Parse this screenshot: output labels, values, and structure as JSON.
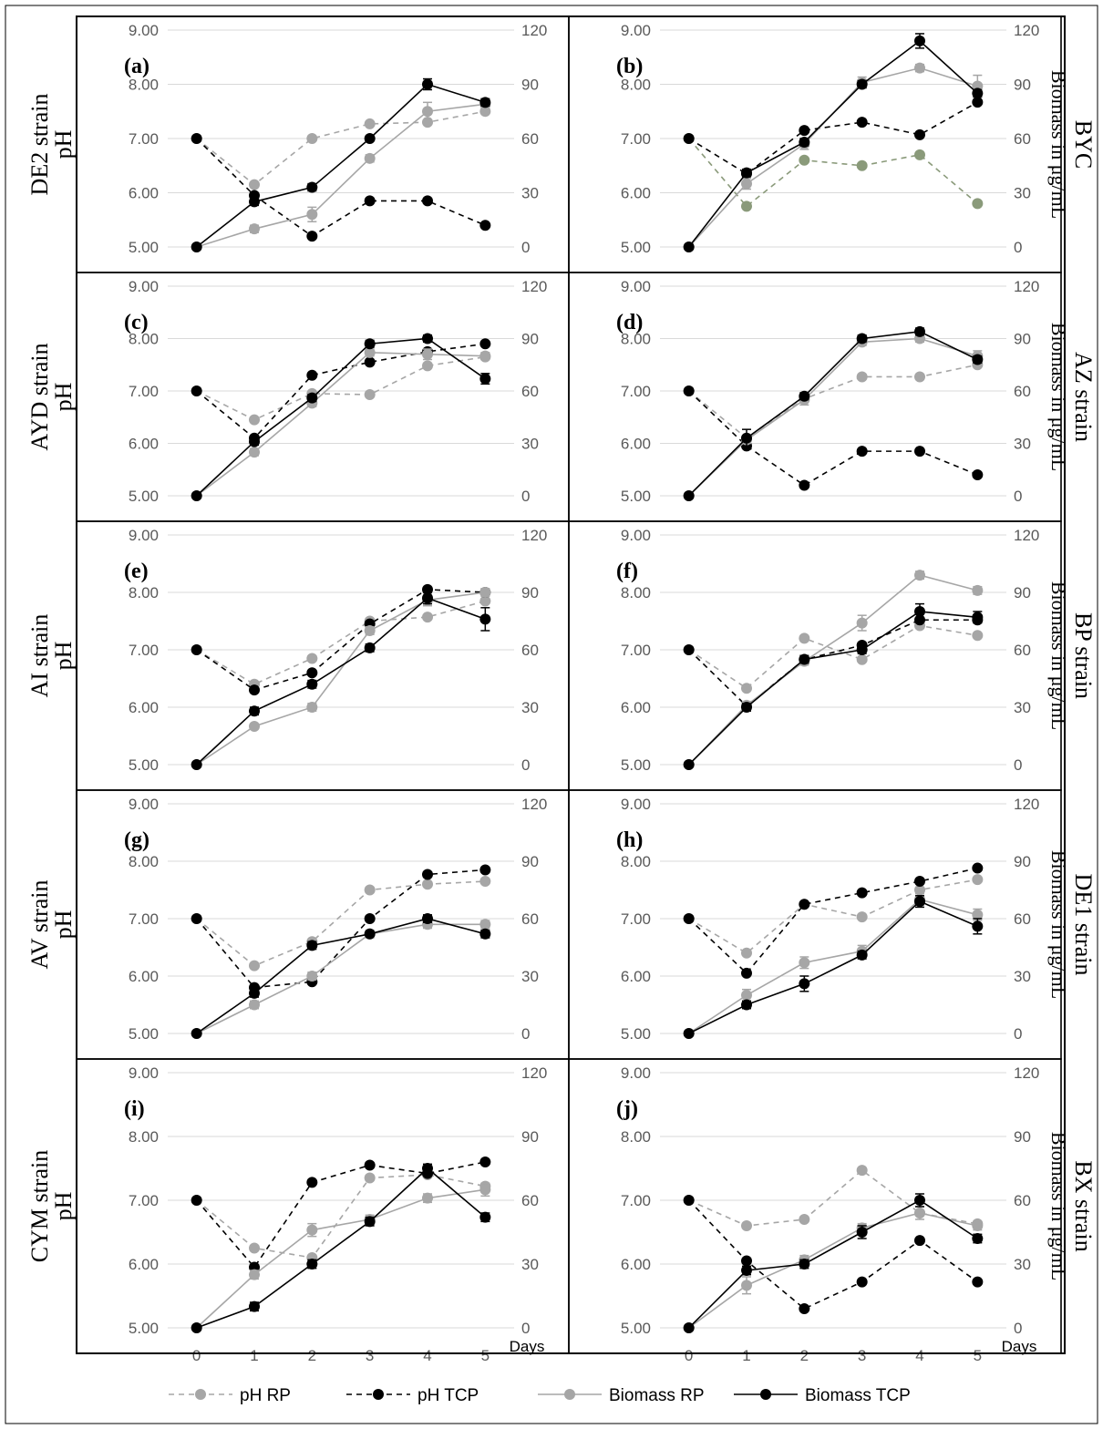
{
  "chart_data": {
    "type": "line",
    "layout": "5 rows x 2 columns of panels",
    "x": [
      0,
      1,
      2,
      3,
      4,
      5
    ],
    "xlabel": "Days",
    "x_tick_labels": [
      "0",
      "1",
      "2",
      "3",
      "4",
      "5"
    ],
    "y_left": {
      "ticks": [
        "5.00",
        "6.00",
        "7.00",
        "8.00",
        "9.00"
      ],
      "range": [
        5,
        9
      ]
    },
    "y_right": {
      "ticks": [
        "0",
        "30",
        "60",
        "90",
        "120"
      ],
      "range": [
        0,
        120
      ]
    },
    "left_axis_label": "pH",
    "right_axis_label": "Biomass in μg/mL",
    "grid": "horizontal",
    "legend": {
      "placement": "bottom",
      "items": [
        {
          "name": "pH RP",
          "color": "#a6a6a6",
          "style": "dashed"
        },
        {
          "name": "pH TCP",
          "color": "#000000",
          "style": "dashed"
        },
        {
          "name": "Biomass RP",
          "color": "#a6a6a6",
          "style": "solid"
        },
        {
          "name": "Biomass TCP",
          "color": "#000000",
          "style": "solid"
        }
      ]
    },
    "panels": [
      {
        "label": "(a)",
        "strain": "DE2 strain",
        "ph_rp": [
          7.0,
          6.15,
          7.0,
          7.27,
          7.3,
          7.5
        ],
        "ph_tcp": [
          7.0,
          5.95,
          5.2,
          5.85,
          5.85,
          5.4
        ],
        "bio_rp": [
          0,
          10,
          18,
          49,
          75,
          79
        ],
        "bio_rp_err": [
          0,
          2,
          4,
          2,
          5,
          2
        ],
        "bio_tcp": [
          0,
          25,
          33,
          60,
          90,
          80
        ],
        "bio_tcp_err": [
          0,
          2,
          2,
          1,
          3,
          2
        ]
      },
      {
        "label": "(b)",
        "strain": "BYC",
        "ph_rp": [
          7.0,
          5.75,
          6.6,
          6.5,
          6.7,
          5.8
        ],
        "ph_rp_color": "#8a9a7a",
        "ph_tcp": [
          7.0,
          6.35,
          7.15,
          7.3,
          7.07,
          7.67
        ],
        "bio_rp": [
          0,
          35,
          57,
          91,
          99,
          89
        ],
        "bio_rp_err": [
          0,
          3,
          3,
          3,
          2,
          6
        ],
        "bio_tcp": [
          0,
          41,
          58,
          90,
          114,
          85
        ],
        "bio_tcp_err": [
          0,
          2,
          2,
          2,
          4,
          2
        ]
      },
      {
        "label": "(c)",
        "strain": "AYD strain",
        "ph_rp": [
          7.0,
          6.45,
          6.95,
          6.93,
          7.48,
          7.65
        ],
        "ph_tcp": [
          7.0,
          6.1,
          7.3,
          7.55,
          7.75,
          7.9
        ],
        "bio_rp": [
          0,
          25,
          53,
          82,
          81,
          80
        ],
        "bio_rp_err": [
          0,
          2,
          2,
          2,
          3,
          2
        ],
        "bio_tcp": [
          0,
          31,
          56,
          87,
          90,
          67
        ],
        "bio_tcp_err": [
          0,
          2,
          2,
          2,
          2,
          3
        ]
      },
      {
        "label": "(d)",
        "strain": "AZ strain",
        "ph_rp": [
          7.0,
          6.1,
          6.85,
          7.27,
          7.27,
          7.5
        ],
        "ph_tcp": [
          7.0,
          5.95,
          5.2,
          5.85,
          5.85,
          5.4
        ],
        "bio_rp": [
          0,
          32,
          55,
          88,
          90,
          80
        ],
        "bio_rp_err": [
          0,
          2,
          3,
          2,
          2,
          3
        ],
        "bio_tcp": [
          0,
          33,
          57,
          90,
          94,
          78
        ],
        "bio_tcp_err": [
          0,
          5,
          2,
          2,
          2,
          2
        ]
      },
      {
        "label": "(e)",
        "strain": "AI strain",
        "ph_rp": [
          7.0,
          6.4,
          6.85,
          7.5,
          7.57,
          7.85
        ],
        "ph_tcp": [
          7.0,
          6.3,
          6.6,
          7.45,
          8.05,
          8.0
        ],
        "bio_rp": [
          0,
          20,
          30,
          70,
          86,
          90
        ],
        "bio_rp_err": [
          0,
          1,
          2,
          2,
          3,
          2
        ],
        "bio_tcp": [
          0,
          28,
          42,
          61,
          87,
          76
        ],
        "bio_tcp_err": [
          0,
          2,
          2,
          2,
          3,
          6
        ]
      },
      {
        "label": "(f)",
        "strain": "BP strain",
        "ph_rp": [
          7.0,
          6.33,
          7.2,
          6.83,
          7.42,
          7.25
        ],
        "ph_tcp": [
          7.0,
          6.02,
          6.83,
          7.08,
          7.52,
          7.52
        ],
        "bio_rp": [
          0,
          31,
          54,
          74,
          99,
          91
        ],
        "bio_rp_err": [
          0,
          2,
          2,
          4,
          2,
          2
        ],
        "bio_tcp": [
          0,
          30,
          55,
          60,
          80,
          77
        ],
        "bio_tcp_err": [
          0,
          2,
          2,
          2,
          4,
          3
        ]
      },
      {
        "label": "(g)",
        "strain": "AV strain",
        "ph_rp": [
          7.0,
          6.18,
          6.6,
          7.5,
          7.6,
          7.65
        ],
        "ph_tcp": [
          7.0,
          5.8,
          5.9,
          7.0,
          7.77,
          7.85
        ],
        "bio_rp": [
          0,
          15,
          30,
          52,
          57,
          57
        ],
        "bio_rp_err": [
          0,
          2,
          2,
          2,
          2,
          2
        ],
        "bio_tcp": [
          0,
          21,
          46,
          52,
          60,
          52
        ],
        "bio_tcp_err": [
          0,
          2,
          2,
          1,
          2,
          2
        ]
      },
      {
        "label": "(h)",
        "strain": "DE1 strain",
        "ph_rp": [
          7.0,
          6.4,
          7.25,
          7.03,
          7.5,
          7.68
        ],
        "ph_tcp": [
          7.0,
          6.05,
          7.25,
          7.45,
          7.65,
          7.88
        ],
        "bio_rp": [
          0,
          20,
          37,
          43,
          70,
          62
        ],
        "bio_rp_err": [
          0,
          3,
          3,
          3,
          3,
          3
        ],
        "bio_tcp": [
          0,
          15,
          26,
          41,
          69,
          56
        ],
        "bio_tcp_err": [
          0,
          2,
          4,
          2,
          3,
          4
        ]
      },
      {
        "label": "(i)",
        "strain": "CYM strain",
        "ph_rp": [
          7.0,
          6.25,
          6.1,
          7.35,
          7.4,
          7.22
        ],
        "ph_tcp": [
          7.0,
          5.95,
          7.28,
          7.55,
          7.42,
          7.6
        ],
        "bio_rp": [
          0,
          25,
          46,
          51,
          61,
          65
        ],
        "bio_rp_err": [
          0,
          2,
          3,
          2,
          2,
          3
        ],
        "bio_tcp": [
          0,
          10,
          30,
          50,
          75,
          52
        ],
        "bio_tcp_err": [
          0,
          2,
          2,
          2,
          2,
          2
        ]
      },
      {
        "label": "(j)",
        "strain": "BX strain",
        "ph_rp": [
          7.0,
          6.6,
          6.7,
          7.47,
          6.8,
          6.63
        ],
        "ph_tcp": [
          7.0,
          6.05,
          5.3,
          5.72,
          6.37,
          5.72
        ],
        "bio_rp": [
          0,
          20,
          32,
          47,
          54,
          48
        ],
        "bio_rp_err": [
          0,
          4,
          2,
          2,
          3,
          2
        ],
        "bio_tcp": [
          0,
          27,
          30,
          45,
          60,
          42
        ],
        "bio_tcp_err": [
          0,
          2,
          2,
          3,
          3,
          2
        ]
      }
    ]
  }
}
